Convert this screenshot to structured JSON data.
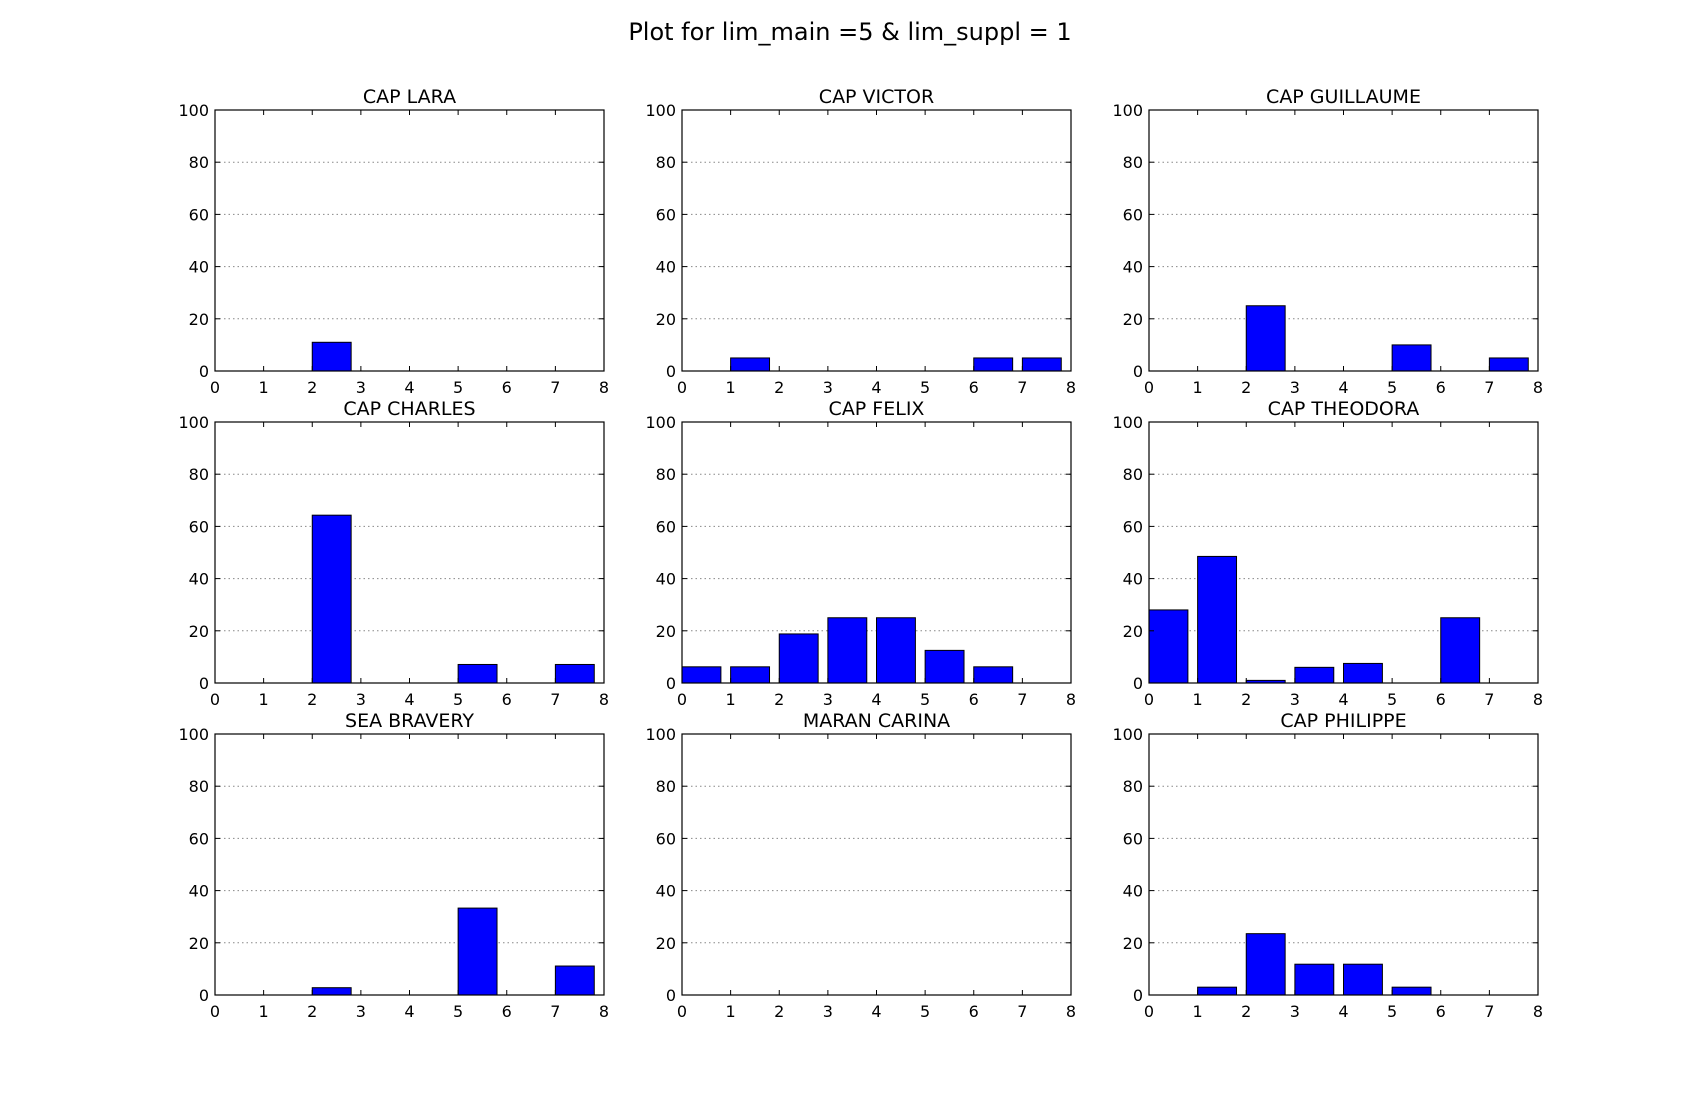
{
  "figure_title": "Plot for lim_main =5 & lim_suppl = 1",
  "colors": {
    "bar": "#0000ff",
    "bar_edge": "#000000",
    "grid": "#888888",
    "axes": "#000000"
  },
  "chart_data": [
    {
      "type": "bar",
      "title": "CAP LARA",
      "x": [
        0,
        1,
        2,
        3,
        4,
        5,
        6,
        7
      ],
      "values": [
        0,
        0,
        11,
        0,
        0,
        0,
        0,
        0
      ],
      "xlim": [
        0,
        8
      ],
      "ylim": [
        0,
        100
      ],
      "xticks": [
        0,
        1,
        2,
        3,
        4,
        5,
        6,
        7,
        8
      ],
      "yticks": [
        0,
        20,
        40,
        60,
        80,
        100
      ],
      "grid": "y-dotted"
    },
    {
      "type": "bar",
      "title": "CAP VICTOR",
      "x": [
        0,
        1,
        2,
        3,
        4,
        5,
        6,
        7
      ],
      "values": [
        0,
        5,
        0,
        0,
        0,
        0,
        5,
        5
      ],
      "xlim": [
        0,
        8
      ],
      "ylim": [
        0,
        100
      ],
      "xticks": [
        0,
        1,
        2,
        3,
        4,
        5,
        6,
        7,
        8
      ],
      "yticks": [
        0,
        20,
        40,
        60,
        80,
        100
      ],
      "grid": "y-dotted"
    },
    {
      "type": "bar",
      "title": "CAP GUILLAUME",
      "x": [
        0,
        1,
        2,
        3,
        4,
        5,
        6,
        7
      ],
      "values": [
        0,
        0,
        25,
        0,
        0,
        10,
        0,
        5
      ],
      "xlim": [
        0,
        8
      ],
      "ylim": [
        0,
        100
      ],
      "xticks": [
        0,
        1,
        2,
        3,
        4,
        5,
        6,
        7,
        8
      ],
      "yticks": [
        0,
        20,
        40,
        60,
        80,
        100
      ],
      "grid": "y-dotted"
    },
    {
      "type": "bar",
      "title": "CAP CHARLES",
      "x": [
        0,
        1,
        2,
        3,
        4,
        5,
        6,
        7
      ],
      "values": [
        0,
        0,
        64.3,
        0,
        0,
        7.1,
        0,
        7.1
      ],
      "xlim": [
        0,
        8
      ],
      "ylim": [
        0,
        100
      ],
      "xticks": [
        0,
        1,
        2,
        3,
        4,
        5,
        6,
        7,
        8
      ],
      "yticks": [
        0,
        20,
        40,
        60,
        80,
        100
      ],
      "grid": "y-dotted"
    },
    {
      "type": "bar",
      "title": "CAP FELIX",
      "x": [
        0,
        1,
        2,
        3,
        4,
        5,
        6,
        7
      ],
      "values": [
        6.2,
        6.2,
        18.8,
        25,
        25,
        12.5,
        6.2,
        0
      ],
      "xlim": [
        0,
        8
      ],
      "ylim": [
        0,
        100
      ],
      "xticks": [
        0,
        1,
        2,
        3,
        4,
        5,
        6,
        7,
        8
      ],
      "yticks": [
        0,
        20,
        40,
        60,
        80,
        100
      ],
      "grid": "y-dotted"
    },
    {
      "type": "bar",
      "title": "CAP THEODORA",
      "x": [
        0,
        1,
        2,
        3,
        4,
        5,
        6,
        7
      ],
      "values": [
        28,
        48.5,
        1,
        6,
        7.5,
        0,
        25,
        0
      ],
      "xlim": [
        0,
        8
      ],
      "ylim": [
        0,
        100
      ],
      "xticks": [
        0,
        1,
        2,
        3,
        4,
        5,
        6,
        7,
        8
      ],
      "yticks": [
        0,
        20,
        40,
        60,
        80,
        100
      ],
      "grid": "y-dotted"
    },
    {
      "type": "bar",
      "title": "SEA BRAVERY",
      "x": [
        0,
        1,
        2,
        3,
        4,
        5,
        6,
        7
      ],
      "values": [
        0,
        0,
        2.8,
        0,
        0,
        33.3,
        0,
        11.1
      ],
      "xlim": [
        0,
        8
      ],
      "ylim": [
        0,
        100
      ],
      "xticks": [
        0,
        1,
        2,
        3,
        4,
        5,
        6,
        7,
        8
      ],
      "yticks": [
        0,
        20,
        40,
        60,
        80,
        100
      ],
      "grid": "y-dotted"
    },
    {
      "type": "bar",
      "title": "MARAN CARINA",
      "x": [
        0,
        1,
        2,
        3,
        4,
        5,
        6,
        7
      ],
      "values": [
        0,
        0,
        0,
        0,
        0,
        0,
        0,
        0
      ],
      "xlim": [
        0,
        8
      ],
      "ylim": [
        0,
        100
      ],
      "xticks": [
        0,
        1,
        2,
        3,
        4,
        5,
        6,
        7,
        8
      ],
      "yticks": [
        0,
        20,
        40,
        60,
        80,
        100
      ],
      "grid": "y-dotted"
    },
    {
      "type": "bar",
      "title": "CAP PHILIPPE",
      "x": [
        0,
        1,
        2,
        3,
        4,
        5,
        6,
        7
      ],
      "values": [
        0,
        3,
        23.5,
        11.8,
        11.8,
        3,
        0,
        0
      ],
      "xlim": [
        0,
        8
      ],
      "ylim": [
        0,
        100
      ],
      "xticks": [
        0,
        1,
        2,
        3,
        4,
        5,
        6,
        7,
        8
      ],
      "yticks": [
        0,
        20,
        40,
        60,
        80,
        100
      ],
      "grid": "y-dotted"
    }
  ]
}
